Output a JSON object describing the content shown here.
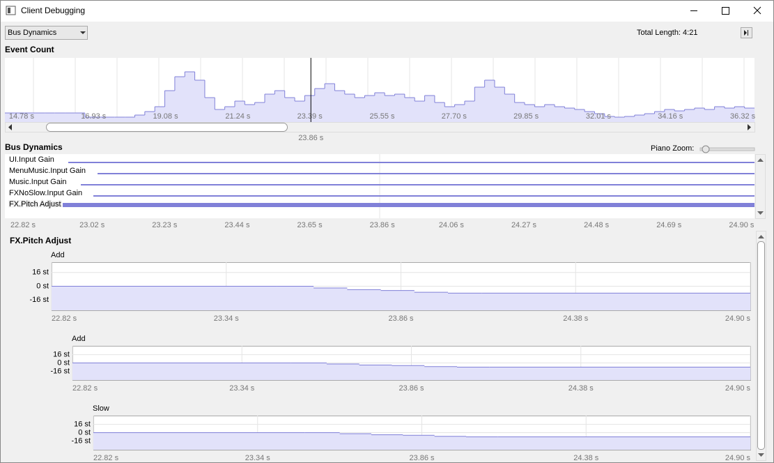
{
  "window": {
    "title": "Client Debugging"
  },
  "toolbar": {
    "dropdown": "Bus Dynamics",
    "total_length": "Total Length: 4:21"
  },
  "event_count": {
    "title": "Event Count",
    "color": "#8080d8",
    "fill": "#e2e2fa",
    "values": [
      13,
      13,
      13,
      13,
      13,
      13,
      13,
      13,
      7,
      7,
      7,
      7,
      7,
      10,
      15,
      22,
      45,
      65,
      72,
      60,
      35,
      18,
      22,
      30,
      25,
      28,
      40,
      45,
      35,
      30,
      38,
      48,
      55,
      45,
      40,
      35,
      38,
      42,
      38,
      40,
      35,
      30,
      38,
      28,
      22,
      25,
      30,
      50,
      60,
      50,
      40,
      28,
      25,
      22,
      25,
      22,
      20,
      18,
      15,
      12,
      8,
      7,
      8,
      10,
      12,
      15,
      18,
      16,
      18,
      20,
      18,
      22,
      20,
      22,
      20
    ],
    "ylim": [
      0,
      92
    ],
    "xlim": [
      14.72,
      37.11
    ],
    "xticks": [
      {
        "value": 14.78,
        "label": "14.78 s"
      },
      {
        "value": 16.93,
        "label": "16.93 s"
      },
      {
        "value": 19.08,
        "label": "19.08 s"
      },
      {
        "value": 21.24,
        "label": "21.24 s"
      },
      {
        "value": 23.39,
        "label": "23.39 s"
      },
      {
        "value": 25.55,
        "label": "25.55 s"
      },
      {
        "value": 27.7,
        "label": "27.70 s"
      },
      {
        "value": 29.85,
        "label": "29.85 s"
      },
      {
        "value": 32.01,
        "label": "32.01 s"
      },
      {
        "value": 34.16,
        "label": "34.16 s"
      },
      {
        "value": 36.32,
        "label": "36.32 s"
      }
    ],
    "cursor": {
      "value": 23.86,
      "label": "23.86 s"
    }
  },
  "bus_dynamics": {
    "title": "Bus Dynamics",
    "piano_zoom": "Piano Zoom:",
    "tracks": [
      "UI.Input Gain",
      "MenuMusic.Input Gain",
      "Music.Input Gain",
      "FXNoSlow.Input Gain",
      "FX.Pitch Adjust"
    ],
    "selected": 4,
    "xlim": [
      22.81,
      24.98
    ],
    "xticks": [
      {
        "value": 22.82,
        "label": "22.82 s"
      },
      {
        "value": 23.02,
        "label": "23.02 s"
      },
      {
        "value": 23.23,
        "label": "23.23 s"
      },
      {
        "value": 23.44,
        "label": "23.44 s"
      },
      {
        "value": 23.65,
        "label": "23.65 s"
      },
      {
        "value": 23.86,
        "label": "23.86 s"
      },
      {
        "value": 24.06,
        "label": "24.06 s"
      },
      {
        "value": 24.27,
        "label": "24.27 s"
      },
      {
        "value": 24.48,
        "label": "24.48 s"
      },
      {
        "value": 24.69,
        "label": "24.69 s"
      },
      {
        "value": 24.9,
        "label": "24.90 s"
      }
    ]
  },
  "detail": {
    "title": "FX.Pitch Adjust",
    "color": "#8080d8",
    "fill": "#e2e2fa",
    "panels": [
      {
        "label": "Add",
        "ylim": [
          -28,
          28
        ],
        "xlim": [
          22.82,
          24.9
        ],
        "yticks": [
          {
            "value": 16,
            "label": "16 st"
          },
          {
            "value": 0,
            "label": "0 st"
          },
          {
            "value": -16,
            "label": "-16 st"
          }
        ],
        "xticks": [
          {
            "value": 22.82,
            "label": "22.82 s"
          },
          {
            "value": 23.34,
            "label": "23.34 s"
          },
          {
            "value": 23.86,
            "label": "23.86 s"
          },
          {
            "value": 24.38,
            "label": "24.38 s"
          },
          {
            "value": 24.9,
            "label": "24.90 s"
          }
        ],
        "x": [
          22.82,
          23.49,
          23.6,
          23.7,
          23.8,
          23.9,
          24.0,
          24.1
        ],
        "values": [
          0,
          0,
          -2,
          -4,
          -5,
          -7,
          -8,
          -8
        ]
      },
      {
        "label": "Add",
        "ylim": [
          -33,
          33
        ],
        "xlim": [
          22.82,
          24.9
        ],
        "yticks": [
          {
            "value": 16,
            "label": "16 st"
          },
          {
            "value": 0,
            "label": "0 st"
          },
          {
            "value": -16,
            "label": "-16 st"
          }
        ],
        "xticks": [
          {
            "value": 22.82,
            "label": "22.82 s"
          },
          {
            "value": 23.34,
            "label": "23.34 s"
          },
          {
            "value": 23.86,
            "label": "23.86 s"
          },
          {
            "value": 24.38,
            "label": "24.38 s"
          },
          {
            "value": 24.9,
            "label": "24.90 s"
          }
        ],
        "x": [
          22.82,
          23.49,
          23.6,
          23.7,
          23.8,
          23.9,
          24.0,
          24.1
        ],
        "values": [
          0,
          0,
          -2,
          -4,
          -5,
          -7,
          -8,
          -8
        ]
      },
      {
        "label": "Slow",
        "ylim": [
          -33,
          33
        ],
        "xlim": [
          22.82,
          24.9
        ],
        "yticks": [
          {
            "value": 16,
            "label": "16 st"
          },
          {
            "value": 0,
            "label": "0 st"
          },
          {
            "value": -16,
            "label": "-16 st"
          }
        ],
        "xticks": [
          {
            "value": 22.82,
            "label": "22.82 s"
          },
          {
            "value": 23.34,
            "label": "23.34 s"
          },
          {
            "value": 23.86,
            "label": "23.86 s"
          },
          {
            "value": 24.38,
            "label": "24.38 s"
          },
          {
            "value": 24.9,
            "label": "24.90 s"
          }
        ],
        "x": [
          22.82,
          23.49,
          23.6,
          23.7,
          23.8,
          23.9,
          24.0,
          24.1
        ],
        "values": [
          0,
          0,
          -2,
          -4,
          -5,
          -7,
          -8,
          -8
        ]
      }
    ]
  }
}
